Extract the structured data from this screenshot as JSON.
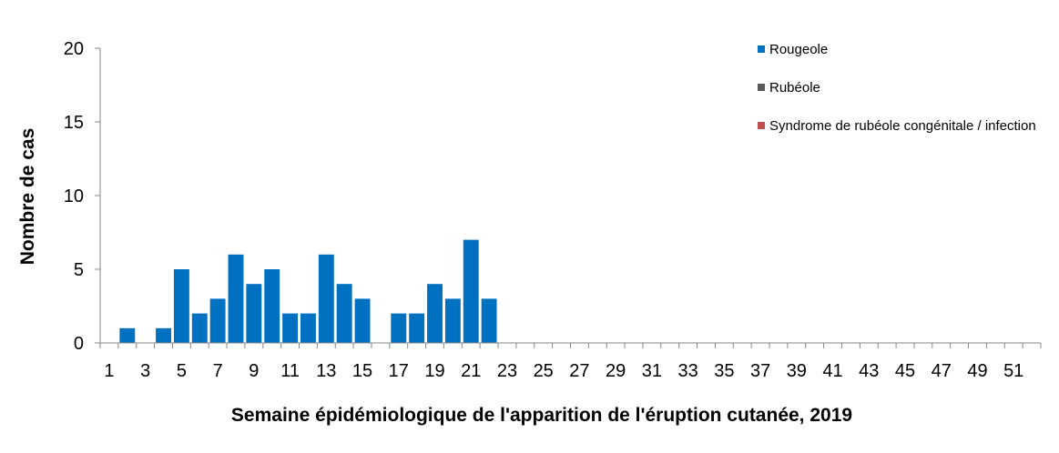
{
  "chart_data": {
    "type": "bar",
    "xlabel": "Semaine épidémiologique de l'apparition de l'éruption cutanée, 2019",
    "ylabel": "Nombre de cas",
    "ylim": [
      0,
      20
    ],
    "yticks": [
      0,
      5,
      10,
      15,
      20
    ],
    "x": [
      1,
      2,
      3,
      4,
      5,
      6,
      7,
      8,
      9,
      10,
      11,
      12,
      13,
      14,
      15,
      16,
      17,
      18,
      19,
      20,
      21,
      22,
      23,
      24,
      25,
      26,
      27,
      28,
      29,
      30,
      31,
      32,
      33,
      34,
      35,
      36,
      37,
      38,
      39,
      40,
      41,
      42,
      43,
      44,
      45,
      46,
      47,
      48,
      49,
      50,
      51,
      52
    ],
    "xtick_labels": [
      1,
      3,
      5,
      7,
      9,
      11,
      13,
      15,
      17,
      19,
      21,
      23,
      25,
      27,
      29,
      31,
      33,
      35,
      37,
      39,
      41,
      43,
      45,
      47,
      49,
      51
    ],
    "grid": false,
    "legend_position": "top-right",
    "series": [
      {
        "name": "Rougeole",
        "color": "#0070c0",
        "values": [
          0,
          1,
          0,
          1,
          5,
          2,
          3,
          6,
          4,
          5,
          2,
          2,
          6,
          4,
          3,
          0,
          2,
          2,
          4,
          3,
          7,
          3,
          0,
          0,
          0,
          0,
          0,
          0,
          0,
          0,
          0,
          0,
          0,
          0,
          0,
          0,
          0,
          0,
          0,
          0,
          0,
          0,
          0,
          0,
          0,
          0,
          0,
          0,
          0,
          0,
          0,
          0
        ]
      },
      {
        "name": "Rubéole",
        "color": "#595959",
        "values": [
          0,
          0,
          0,
          0,
          0,
          0,
          0,
          0,
          0,
          0,
          0,
          0,
          0,
          0,
          0,
          0,
          0,
          0,
          0,
          0,
          0,
          0,
          0,
          0,
          0,
          0,
          0,
          0,
          0,
          0,
          0,
          0,
          0,
          0,
          0,
          0,
          0,
          0,
          0,
          0,
          0,
          0,
          0,
          0,
          0,
          0,
          0,
          0,
          0,
          0,
          0,
          0
        ]
      },
      {
        "name": "Syndrome de rubéole congénitale / infection",
        "color": "#c0504d",
        "values": [
          0,
          0,
          0,
          0,
          0,
          0,
          0,
          0,
          0,
          0,
          0,
          0,
          0,
          0,
          0,
          0,
          0,
          0,
          0,
          0,
          0,
          0,
          0,
          0,
          0,
          0,
          0,
          0,
          0,
          0,
          0,
          0,
          0,
          0,
          0,
          0,
          0,
          0,
          0,
          0,
          0,
          0,
          0,
          0,
          0,
          0,
          0,
          0,
          0,
          0,
          0,
          0
        ]
      }
    ]
  }
}
